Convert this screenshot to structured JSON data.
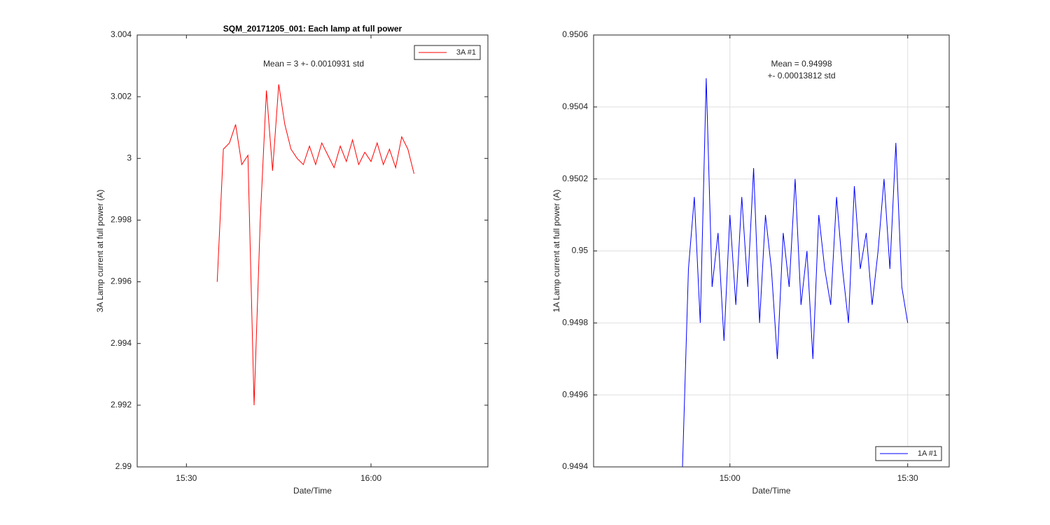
{
  "chart_data": [
    {
      "type": "line",
      "title": "SQM_20171205_001: Each lamp at full power",
      "x_label": "Date/Time",
      "y_label": "3A Lamp current at full power (A)",
      "annotation": [
        "Mean = 3 +- 0.0010931 std"
      ],
      "x": [
        "15:35",
        "15:36",
        "15:37",
        "15:38",
        "15:39",
        "15:40",
        "15:41",
        "15:42",
        "15:43",
        "15:44",
        "15:45",
        "15:46",
        "15:47",
        "15:48",
        "15:49",
        "15:50",
        "15:51",
        "15:52",
        "15:53",
        "15:54",
        "15:55",
        "15:56",
        "15:57",
        "15:58",
        "15:59",
        "16:00",
        "16:01",
        "16:02",
        "16:03",
        "16:04",
        "16:05",
        "16:06",
        "16:07"
      ],
      "series": [
        {
          "name": "3A #1",
          "color": "#ff0000",
          "values": [
            2.996,
            3.0003,
            3.0005,
            3.0011,
            2.9998,
            3.0001,
            2.992,
            2.998,
            3.0022,
            2.9996,
            3.0024,
            3.0011,
            3.0003,
            3.0,
            2.9998,
            3.0004,
            2.9998,
            3.0005,
            3.0001,
            2.9997,
            3.0004,
            2.9999,
            3.0006,
            2.9998,
            3.0002,
            2.9999,
            3.0005,
            2.9998,
            3.0003,
            2.9997,
            3.0007,
            3.0003,
            2.9995
          ]
        }
      ],
      "xlim": [
        "15:22",
        "16:19"
      ],
      "xticks": [
        "15:30",
        "16:00"
      ],
      "ylim": [
        2.99,
        3.004
      ],
      "yticks": [
        2.99,
        2.992,
        2.994,
        2.996,
        2.998,
        3,
        3.002,
        3.004
      ],
      "grid": false,
      "legend": "northeast"
    },
    {
      "type": "line",
      "x_label": "Date/Time",
      "y_label": "1A Lamp current at full power (A)",
      "annotation": [
        "Mean = 0.94998",
        "+- 0.00013812 std"
      ],
      "x": [
        "14:52",
        "14:53",
        "14:54",
        "14:55",
        "14:56",
        "14:57",
        "14:58",
        "14:59",
        "15:00",
        "15:01",
        "15:02",
        "15:03",
        "15:04",
        "15:05",
        "15:06",
        "15:07",
        "15:08",
        "15:09",
        "15:10",
        "15:11",
        "15:12",
        "15:13",
        "15:14",
        "15:15",
        "15:16",
        "15:17",
        "15:18",
        "15:19",
        "15:20",
        "15:21",
        "15:22",
        "15:23",
        "15:24",
        "15:25",
        "15:26",
        "15:27",
        "15:28",
        "15:29",
        "15:30"
      ],
      "series": [
        {
          "name": "1A #1",
          "color": "#0000ff",
          "values": [
            0.9494,
            0.94995,
            0.95015,
            0.9498,
            0.95048,
            0.9499,
            0.95005,
            0.94975,
            0.9501,
            0.94985,
            0.95015,
            0.9499,
            0.95023,
            0.9498,
            0.9501,
            0.94995,
            0.9497,
            0.95005,
            0.9499,
            0.9502,
            0.94985,
            0.95,
            0.9497,
            0.9501,
            0.94995,
            0.94985,
            0.95015,
            0.94995,
            0.9498,
            0.95018,
            0.94995,
            0.95005,
            0.94985,
            0.95,
            0.9502,
            0.94995,
            0.9503,
            0.9499,
            0.9498
          ]
        }
      ],
      "xlim": [
        "14:37",
        "15:37"
      ],
      "xticks": [
        "15:00",
        "15:30"
      ],
      "ylim": [
        0.9494,
        0.9506
      ],
      "yticks": [
        0.9494,
        0.9496,
        0.9498,
        0.95,
        0.9502,
        0.9504,
        0.9506
      ],
      "grid": true,
      "legend": "southeast"
    }
  ]
}
